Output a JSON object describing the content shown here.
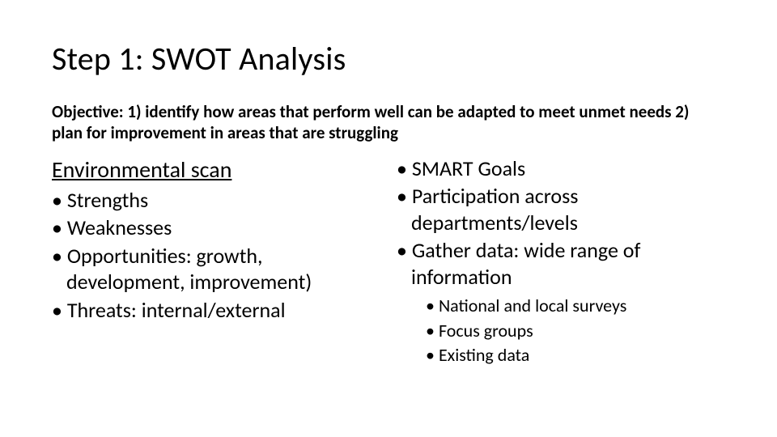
{
  "slide": {
    "title": "Step 1: SWOT Analysis",
    "objective": "Objective: 1) identify how areas that perform well can be adapted to meet unmet needs 2) plan for improvement in areas that are struggling",
    "left": {
      "heading": "Environmental scan",
      "items": [
        "Strengths",
        "Weaknesses",
        "Opportunities: growth, development, improvement)",
        "Threats: internal/external"
      ]
    },
    "right": {
      "items": [
        "SMART Goals",
        "Participation across departments/levels",
        "Gather data: wide range of information"
      ],
      "subitems": [
        "National and local surveys",
        "Focus groups",
        "Existing data"
      ]
    }
  },
  "style": {
    "background_color": "#ffffff",
    "text_color": "#000000",
    "title_fontsize": 40,
    "objective_fontsize": 21,
    "heading_fontsize": 28,
    "body_fontsize": 26,
    "sub_fontsize": 22,
    "font_family": "Calibri"
  }
}
